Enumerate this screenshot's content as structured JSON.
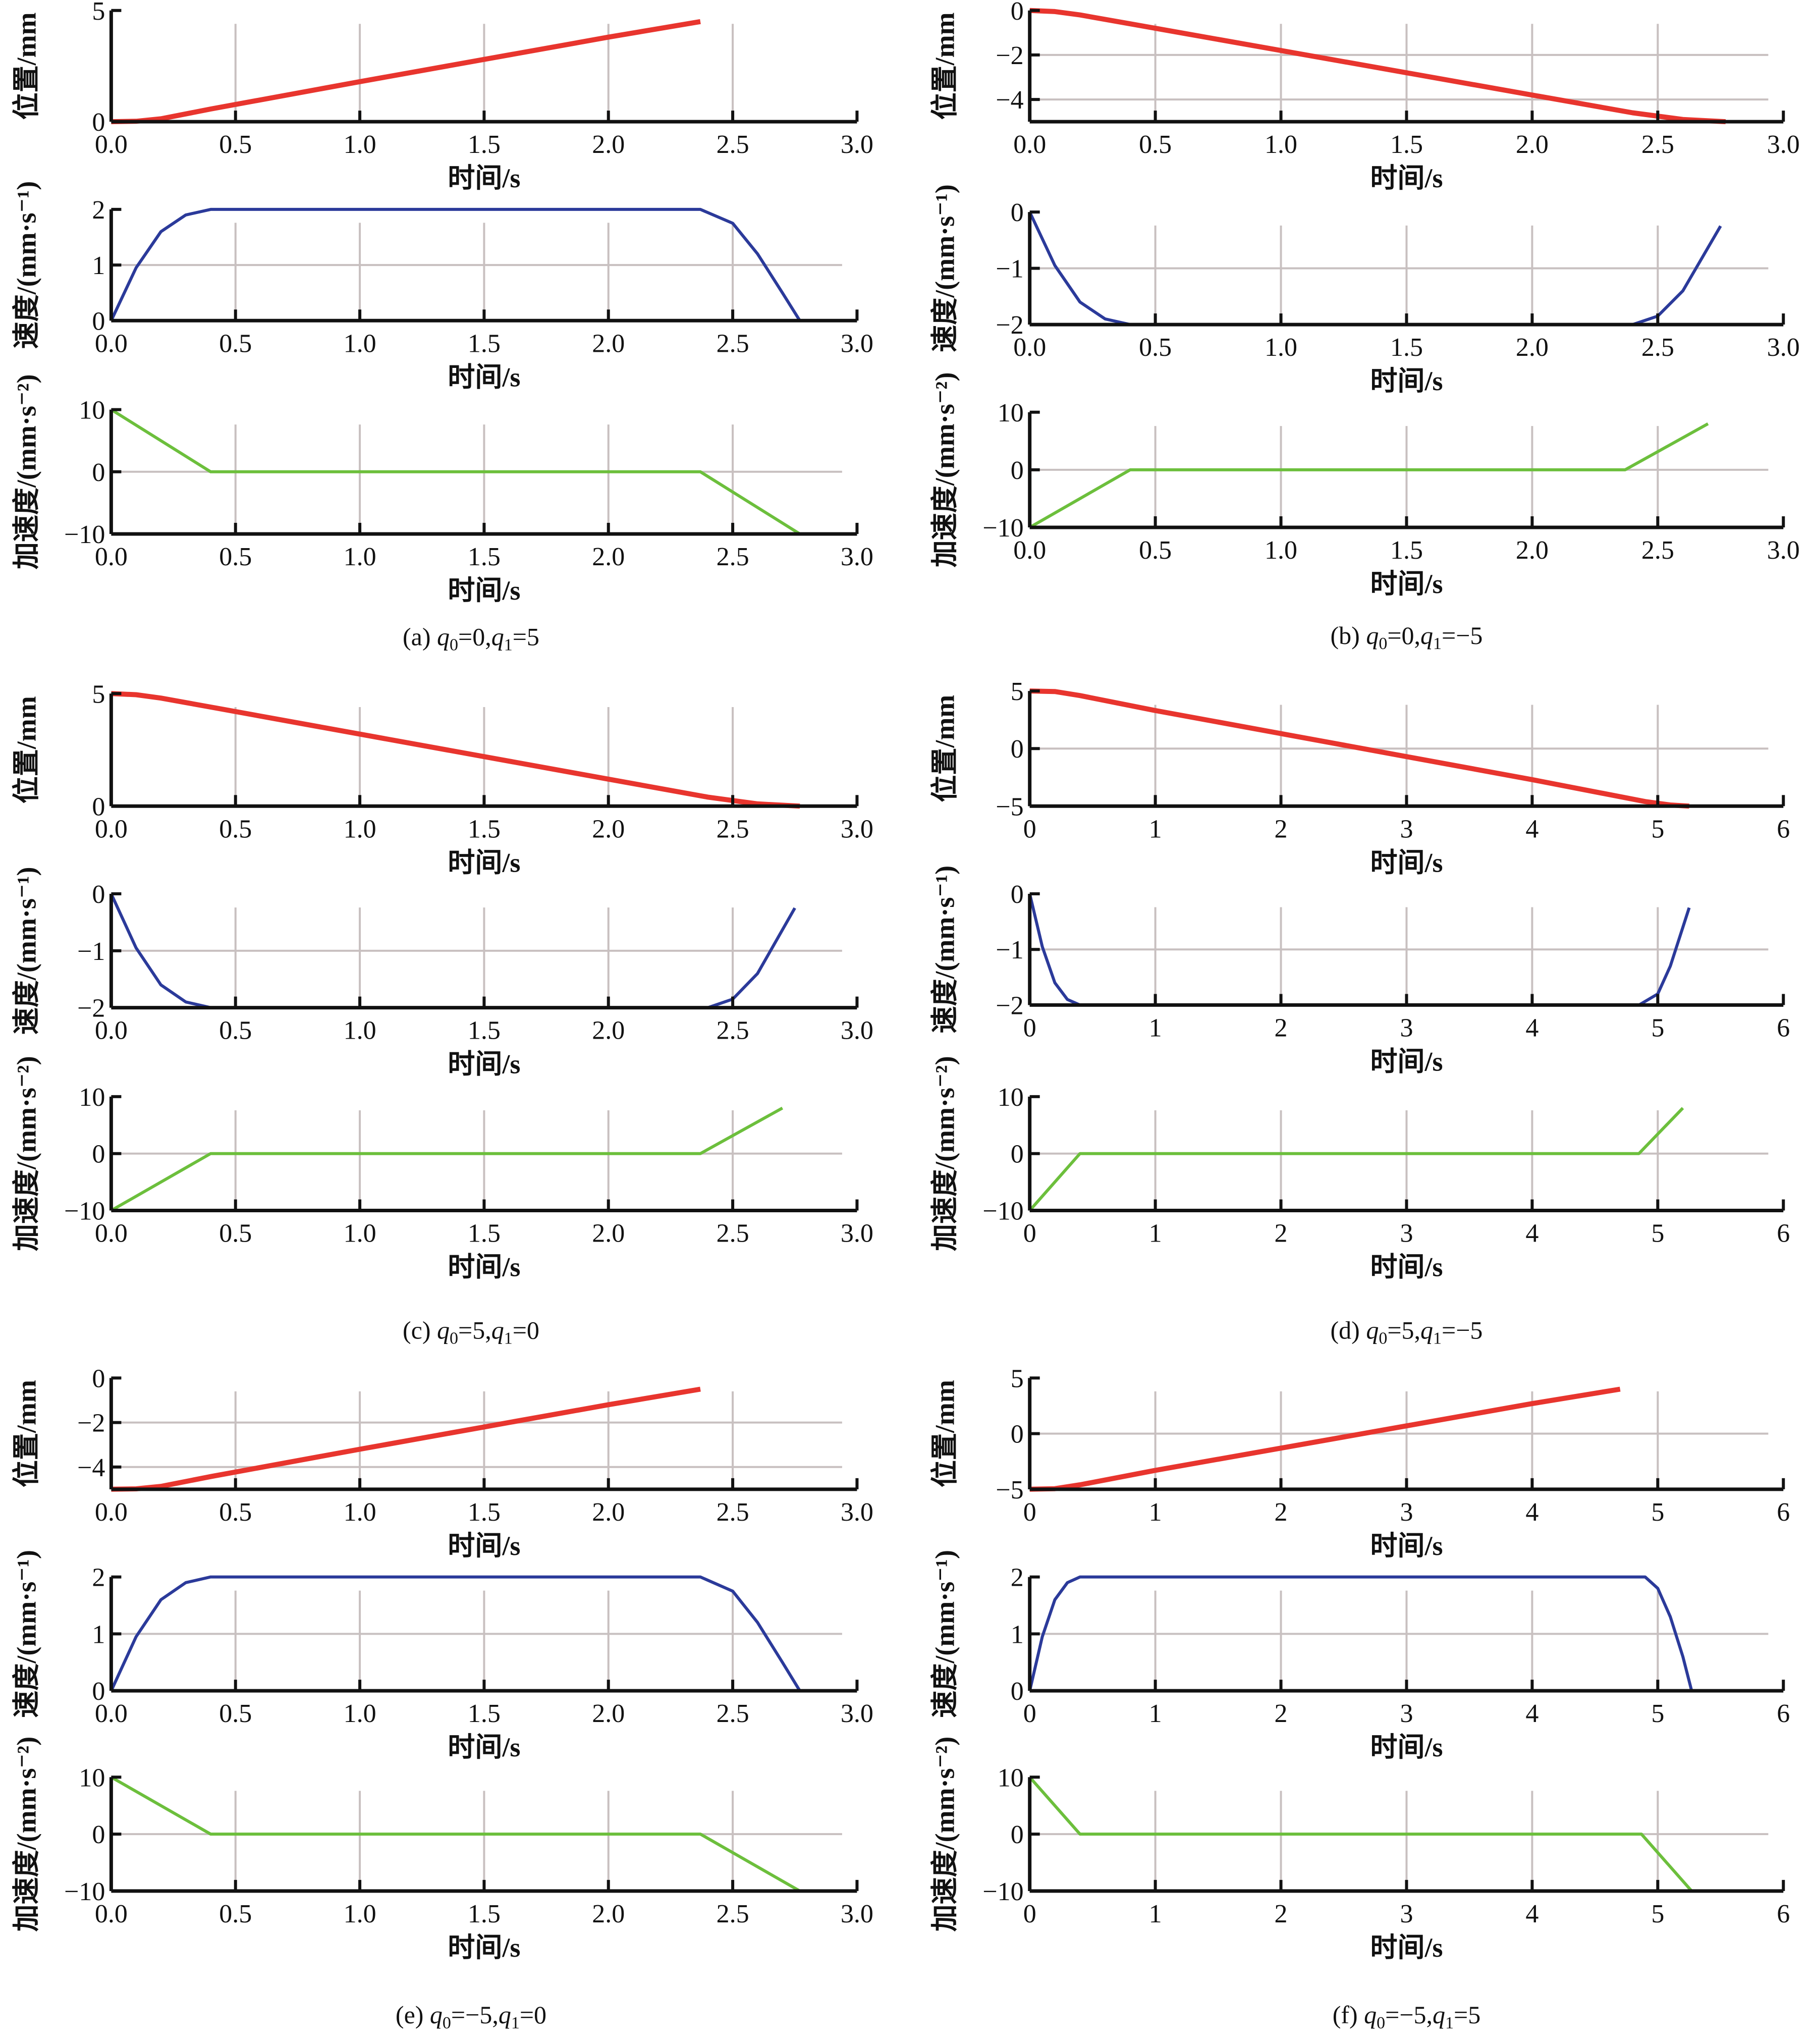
{
  "colors": {
    "position": "#e8352e",
    "speed": "#2b3a9a",
    "accel": "#6cbf3c",
    "grid": "#c8c0c0",
    "axis": "#111111"
  },
  "labels": {
    "xlabel": "时间/s",
    "ylabel_position": "位置/mm",
    "ylabel_speed": "速度/(mm·s⁻¹)",
    "ylabel_accel": "加速度/(mm·s⁻²)"
  },
  "chart_data": [
    {
      "id": "a",
      "caption": "(a) q₀=0,q₁=5",
      "caption_parts": {
        "prefix": "(a) ",
        "q0": "0",
        "q1": "5"
      },
      "type": "line",
      "xlim": [
        0,
        3
      ],
      "xticks": [
        "0.0",
        "0.5",
        "1.0",
        "1.5",
        "2.0",
        "2.5",
        "3.0"
      ],
      "xtick_values": [
        0,
        0.5,
        1,
        1.5,
        2,
        2.5,
        3
      ],
      "subplots": [
        {
          "kind": "position",
          "ylim": [
            0,
            5
          ],
          "yticks": [
            0,
            5
          ],
          "ytick_labels": [
            "0",
            "5"
          ],
          "x": [
            0,
            0.1,
            0.2,
            0.4,
            1.0,
            1.5,
            2.0,
            2.37
          ],
          "y": [
            0,
            0.02,
            0.13,
            0.57,
            1.8,
            2.8,
            3.8,
            4.5
          ]
        },
        {
          "kind": "speed",
          "ylim": [
            0,
            2
          ],
          "yticks": [
            0,
            1,
            2
          ],
          "ytick_labels": [
            "0",
            "1",
            "2"
          ],
          "x": [
            0,
            0.1,
            0.2,
            0.3,
            0.4,
            2.37,
            2.5,
            2.6,
            2.7,
            2.77
          ],
          "y": [
            0,
            0.95,
            1.6,
            1.9,
            2,
            2,
            1.75,
            1.2,
            0.5,
            0
          ]
        },
        {
          "kind": "accel",
          "ylim": [
            -10,
            10
          ],
          "yticks": [
            -10,
            0,
            10
          ],
          "ytick_labels": [
            "−10",
            "0",
            "10"
          ],
          "x": [
            0,
            0.4,
            2.37,
            2.77
          ],
          "y": [
            10,
            0,
            0,
            -10
          ]
        }
      ]
    },
    {
      "id": "b",
      "caption": "(b) q₀=0,q₁=−5",
      "caption_parts": {
        "prefix": "(b) ",
        "q0": "0",
        "q1": "−5"
      },
      "type": "line",
      "xlim": [
        0,
        3
      ],
      "xticks": [
        "0.0",
        "0.5",
        "1.0",
        "1.5",
        "2.0",
        "2.5",
        "3.0"
      ],
      "xtick_values": [
        0,
        0.5,
        1,
        1.5,
        2,
        2.5,
        3
      ],
      "subplots": [
        {
          "kind": "position",
          "ylim": [
            -5,
            0
          ],
          "yticks": [
            -4,
            -2,
            0
          ],
          "ytick_labels": [
            "−4",
            "−2",
            "0"
          ],
          "x": [
            0,
            0.1,
            0.2,
            0.4,
            1.0,
            1.5,
            2.0,
            2.4,
            2.6,
            2.77
          ],
          "y": [
            0,
            -0.05,
            -0.2,
            -0.6,
            -1.8,
            -2.8,
            -3.8,
            -4.6,
            -4.9,
            -5
          ]
        },
        {
          "kind": "speed",
          "ylim": [
            -2,
            0
          ],
          "yticks": [
            -2,
            -1,
            0
          ],
          "ytick_labels": [
            "−2",
            "−1",
            "0"
          ],
          "x": [
            0,
            0.1,
            0.2,
            0.3,
            0.4,
            2.4,
            2.5,
            2.6,
            2.75
          ],
          "y": [
            0,
            -0.95,
            -1.6,
            -1.9,
            -2,
            -2,
            -1.85,
            -1.4,
            -0.25
          ]
        },
        {
          "kind": "accel",
          "ylim": [
            -10,
            10
          ],
          "yticks": [
            -10,
            0,
            10
          ],
          "ytick_labels": [
            "−10",
            "0",
            "10"
          ],
          "x": [
            0,
            0.4,
            2.37,
            2.7
          ],
          "y": [
            -10,
            0,
            0,
            8
          ]
        }
      ]
    },
    {
      "id": "c",
      "caption": "(c) q₀=5,q₁=0",
      "caption_parts": {
        "prefix": "(c) ",
        "q0": "5",
        "q1": "0"
      },
      "type": "line",
      "xlim": [
        0,
        3
      ],
      "xticks": [
        "0.0",
        "0.5",
        "1.0",
        "1.5",
        "2.0",
        "2.5",
        "3.0"
      ],
      "xtick_values": [
        0,
        0.5,
        1,
        1.5,
        2,
        2.5,
        3
      ],
      "subplots": [
        {
          "kind": "position",
          "ylim": [
            0,
            5
          ],
          "yticks": [
            0,
            5
          ],
          "ytick_labels": [
            "0",
            "5"
          ],
          "x": [
            0,
            0.1,
            0.2,
            0.4,
            1.0,
            1.5,
            2.0,
            2.4,
            2.6,
            2.77
          ],
          "y": [
            5,
            4.95,
            4.8,
            4.4,
            3.2,
            2.2,
            1.2,
            0.4,
            0.1,
            0
          ]
        },
        {
          "kind": "speed",
          "ylim": [
            -2,
            0
          ],
          "yticks": [
            -2,
            -1,
            0
          ],
          "ytick_labels": [
            "−2",
            "−1",
            "0"
          ],
          "x": [
            0,
            0.1,
            0.2,
            0.3,
            0.4,
            2.4,
            2.5,
            2.6,
            2.75
          ],
          "y": [
            0,
            -0.95,
            -1.6,
            -1.9,
            -2,
            -2,
            -1.85,
            -1.4,
            -0.25
          ]
        },
        {
          "kind": "accel",
          "ylim": [
            -10,
            10
          ],
          "yticks": [
            -10,
            0,
            10
          ],
          "ytick_labels": [
            "−10",
            "0",
            "10"
          ],
          "x": [
            0,
            0.4,
            2.37,
            2.7
          ],
          "y": [
            -10,
            0,
            0,
            8
          ]
        }
      ]
    },
    {
      "id": "d",
      "caption": "(d) q₀=5,q₁=−5",
      "caption_parts": {
        "prefix": "(d) ",
        "q0": "5",
        "q1": "−5"
      },
      "type": "line",
      "xlim": [
        0,
        6
      ],
      "xticks": [
        "0",
        "1",
        "2",
        "3",
        "4",
        "5",
        "6"
      ],
      "xtick_values": [
        0,
        1,
        2,
        3,
        4,
        5,
        6
      ],
      "subplots": [
        {
          "kind": "position",
          "ylim": [
            -5,
            5
          ],
          "yticks": [
            -5,
            0,
            5
          ],
          "ytick_labels": [
            "−5",
            "0",
            "5"
          ],
          "x": [
            0,
            0.2,
            0.4,
            1,
            2,
            3,
            4,
            4.9,
            5.1,
            5.25
          ],
          "y": [
            5,
            4.95,
            4.6,
            3.3,
            1.3,
            -0.7,
            -2.7,
            -4.6,
            -4.9,
            -5
          ]
        },
        {
          "kind": "speed",
          "ylim": [
            -2,
            0
          ],
          "yticks": [
            -2,
            -1,
            0
          ],
          "ytick_labels": [
            "−2",
            "−1",
            "0"
          ],
          "x": [
            0,
            0.1,
            0.2,
            0.3,
            0.4,
            4.85,
            5.0,
            5.1,
            5.25
          ],
          "y": [
            0,
            -0.95,
            -1.6,
            -1.9,
            -2,
            -2,
            -1.8,
            -1.3,
            -0.25
          ]
        },
        {
          "kind": "accel",
          "ylim": [
            -10,
            10
          ],
          "yticks": [
            -10,
            0,
            10
          ],
          "ytick_labels": [
            "−10",
            "0",
            "10"
          ],
          "x": [
            0,
            0.4,
            4.85,
            5.2
          ],
          "y": [
            -10,
            0,
            0,
            8
          ]
        }
      ]
    },
    {
      "id": "e",
      "caption": "(e) q₀=−5,q₁=0",
      "caption_parts": {
        "prefix": "(e) ",
        "q0": "−5",
        "q1": "0"
      },
      "type": "line",
      "xlim": [
        0,
        3
      ],
      "xticks": [
        "0.0",
        "0.5",
        "1.0",
        "1.5",
        "2.0",
        "2.5",
        "3.0"
      ],
      "xtick_values": [
        0,
        0.5,
        1,
        1.5,
        2,
        2.5,
        3
      ],
      "subplots": [
        {
          "kind": "position",
          "ylim": [
            -5,
            0
          ],
          "yticks": [
            -4,
            -2,
            0
          ],
          "ytick_labels": [
            "−4",
            "−2",
            "0"
          ],
          "x": [
            0,
            0.1,
            0.2,
            0.4,
            1.0,
            1.5,
            2.0,
            2.37
          ],
          "y": [
            -5,
            -4.98,
            -4.87,
            -4.43,
            -3.2,
            -2.2,
            -1.2,
            -0.5
          ]
        },
        {
          "kind": "speed",
          "ylim": [
            0,
            2
          ],
          "yticks": [
            0,
            1,
            2
          ],
          "ytick_labels": [
            "0",
            "1",
            "2"
          ],
          "x": [
            0,
            0.1,
            0.2,
            0.3,
            0.4,
            2.37,
            2.5,
            2.6,
            2.7,
            2.77
          ],
          "y": [
            0,
            0.95,
            1.6,
            1.9,
            2,
            2,
            1.75,
            1.2,
            0.5,
            0
          ]
        },
        {
          "kind": "accel",
          "ylim": [
            -10,
            10
          ],
          "yticks": [
            -10,
            0,
            10
          ],
          "ytick_labels": [
            "−10",
            "0",
            "10"
          ],
          "x": [
            0,
            0.4,
            2.37,
            2.77
          ],
          "y": [
            10,
            0,
            0,
            -10
          ]
        }
      ]
    },
    {
      "id": "f",
      "caption": "(f) q₀=−5,q₁=5",
      "caption_parts": {
        "prefix": "(f) ",
        "q0": "−5",
        "q1": "5"
      },
      "type": "line",
      "xlim": [
        0,
        6
      ],
      "xticks": [
        "0",
        "1",
        "2",
        "3",
        "4",
        "5",
        "6"
      ],
      "xtick_values": [
        0,
        1,
        2,
        3,
        4,
        5,
        6
      ],
      "subplots": [
        {
          "kind": "position",
          "ylim": [
            -5,
            5
          ],
          "yticks": [
            -5,
            0,
            5
          ],
          "ytick_labels": [
            "−5",
            "0",
            "5"
          ],
          "x": [
            0,
            0.2,
            0.4,
            1,
            2,
            3,
            4,
            4.7
          ],
          "y": [
            -5,
            -4.95,
            -4.6,
            -3.3,
            -1.3,
            0.7,
            2.7,
            4
          ]
        },
        {
          "kind": "speed",
          "ylim": [
            0,
            2
          ],
          "yticks": [
            0,
            1,
            2
          ],
          "ytick_labels": [
            "0",
            "1",
            "2"
          ],
          "x": [
            0,
            0.1,
            0.2,
            0.3,
            0.4,
            4.9,
            5.0,
            5.1,
            5.2,
            5.27
          ],
          "y": [
            0,
            0.95,
            1.6,
            1.9,
            2,
            2,
            1.8,
            1.3,
            0.6,
            0
          ]
        },
        {
          "kind": "accel",
          "ylim": [
            -10,
            10
          ],
          "yticks": [
            -10,
            0,
            10
          ],
          "ytick_labels": [
            "−10",
            "0",
            "10"
          ],
          "x": [
            0,
            0.4,
            4.87,
            5.27
          ],
          "y": [
            10,
            0,
            0,
            -10
          ]
        }
      ]
    }
  ]
}
